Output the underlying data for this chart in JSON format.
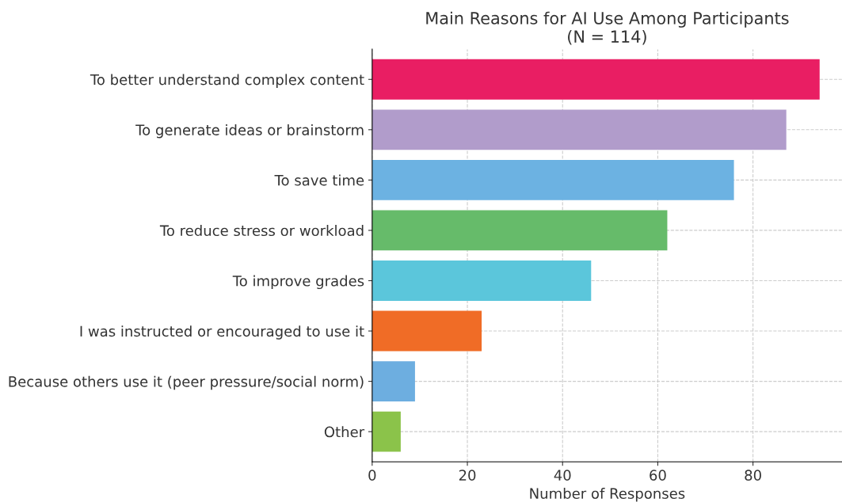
{
  "chart_data": {
    "type": "bar",
    "orientation": "horizontal",
    "title": "Main Reasons for AI Use Among Participants\n(N = 114)",
    "xlabel": "Number of Responses",
    "categories": [
      "To better understand complex content",
      "To generate ideas or brainstorm",
      "To save time",
      "To reduce stress or workload",
      "To improve grades",
      "I was instructed or encouraged to use it",
      "Because others use it (peer pressure/social norm)",
      "Other"
    ],
    "values": [
      94,
      87,
      76,
      62,
      46,
      23,
      9,
      6
    ],
    "colors": [
      "#e91e63",
      "#b19ccb",
      "#6cb2e2",
      "#66bb6a",
      "#5bc6db",
      "#f06c26",
      "#6daee0",
      "#8bc34a"
    ],
    "xlim": [
      0,
      98.7
    ],
    "xticks": [
      0,
      20,
      40,
      60,
      80
    ],
    "grid": true
  }
}
